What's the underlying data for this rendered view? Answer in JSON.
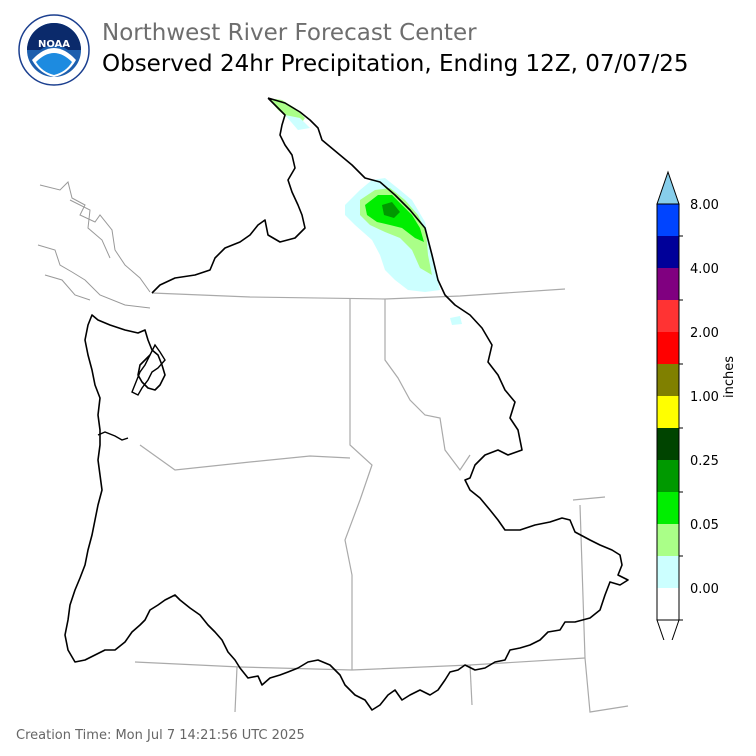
{
  "header": {
    "org": "Northwest River Forecast Center",
    "product": "Observed 24hr Precipitation, Ending 12Z, 07/07/25"
  },
  "logo": {
    "text": "NOAA",
    "ring_text": "NATIONAL OCEANIC AND ATMOSPHERIC ADMINISTRATION · U.S. DEPARTMENT OF COMMERCE",
    "icon": "noaa-seal-icon"
  },
  "legend": {
    "unit": "inches",
    "tick_labels": [
      "0.00",
      "0.05",
      "0.25",
      "1.00",
      "2.00",
      "4.00",
      "8.00"
    ],
    "colors": [
      "#ffffff",
      "#ccffff",
      "#aaff88",
      "#00ee00",
      "#009900",
      "#004400",
      "#ffff00",
      "#808000",
      "#ff0000",
      "#ff3333",
      "#800080",
      "#000099",
      "#0044ff",
      "#87ceeb"
    ]
  },
  "footer": {
    "creation_time": "Creation Time: Mon Jul 7 14:21:56 UTC 2025"
  },
  "colors": {
    "basin_outline": "#000000",
    "state_lines": "#aaaaaa",
    "coast_lines": "#999999",
    "title_gray": "#6e6e6e"
  }
}
